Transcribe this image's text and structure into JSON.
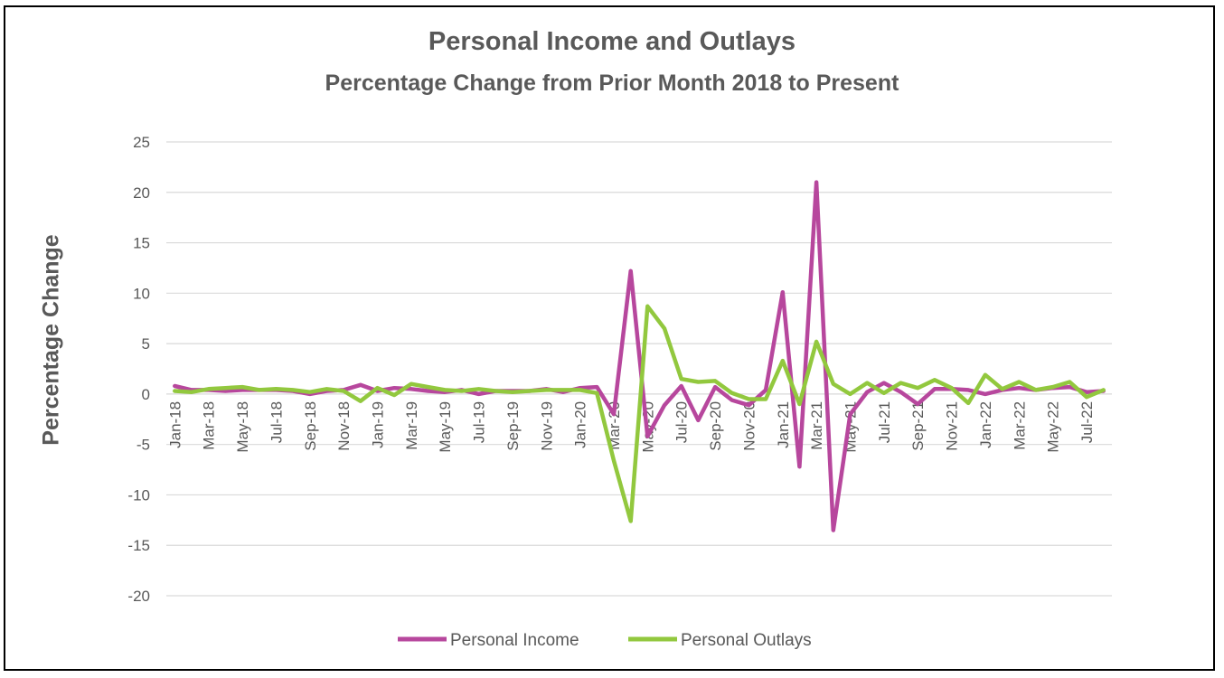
{
  "chart_data": {
    "type": "line",
    "title": "Personal Income and Outlays",
    "subtitle": "Percentage Change from Prior Month 2018 to Present",
    "ylabel": "Percentage Change",
    "xlabel": "",
    "ylim": [
      -20,
      25
    ],
    "yticks": [
      25,
      20,
      15,
      10,
      5,
      0,
      -5,
      -10,
      -15,
      -20
    ],
    "grid": true,
    "legend_position": "bottom",
    "categories": [
      "Jan-18",
      "Feb-18",
      "Mar-18",
      "Apr-18",
      "May-18",
      "Jun-18",
      "Jul-18",
      "Aug-18",
      "Sep-18",
      "Oct-18",
      "Nov-18",
      "Dec-18",
      "Jan-19",
      "Feb-19",
      "Mar-19",
      "Apr-19",
      "May-19",
      "Jun-19",
      "Jul-19",
      "Aug-19",
      "Sep-19",
      "Oct-19",
      "Nov-19",
      "Dec-19",
      "Jan-20",
      "Feb-20",
      "Mar-20",
      "Apr-20",
      "May-20",
      "Jun-20",
      "Jul-20",
      "Aug-20",
      "Sep-20",
      "Oct-20",
      "Nov-20",
      "Dec-20",
      "Jan-21",
      "Feb-21",
      "Mar-21",
      "Apr-21",
      "May-21",
      "Jun-21",
      "Jul-21",
      "Aug-21",
      "Sep-21",
      "Oct-21",
      "Nov-21",
      "Dec-21",
      "Jan-22",
      "Feb-22",
      "Mar-22",
      "Apr-22",
      "May-22",
      "Jun-22",
      "Jul-22",
      "Aug-22"
    ],
    "tick_labels": [
      "Jan-18",
      "Mar-18",
      "May-18",
      "Jul-18",
      "Sep-18",
      "Nov-18",
      "Jan-19",
      "Mar-19",
      "May-19",
      "Jul-19",
      "Sep-19",
      "Nov-19",
      "Jan-20",
      "Mar-20",
      "May-20",
      "Jul-20",
      "Sep-20",
      "Nov-20",
      "Jan-21",
      "Mar-21",
      "May-21",
      "Jul-21",
      "Sep-21",
      "Nov-21",
      "Jan-22",
      "Mar-22",
      "May-22",
      "Jul-22"
    ],
    "series": [
      {
        "name": "Personal Income",
        "color": "#B7479D",
        "values": [
          0.8,
          0.4,
          0.4,
          0.3,
          0.4,
          0.4,
          0.4,
          0.3,
          0.0,
          0.3,
          0.4,
          0.9,
          0.3,
          0.6,
          0.5,
          0.3,
          0.2,
          0.4,
          0.0,
          0.3,
          0.3,
          0.3,
          0.5,
          0.2,
          0.6,
          0.7,
          -2.0,
          12.2,
          -4.2,
          -1.1,
          0.8,
          -2.6,
          0.7,
          -0.6,
          -1.1,
          0.4,
          10.1,
          -7.2,
          21.0,
          -13.5,
          -2.0,
          0.2,
          1.1,
          0.2,
          -1.0,
          0.5,
          0.5,
          0.4,
          0.0,
          0.4,
          0.6,
          0.4,
          0.6,
          0.7,
          0.2,
          0.3
        ]
      },
      {
        "name": "Personal Outlays",
        "color": "#92C83E",
        "values": [
          0.3,
          0.2,
          0.5,
          0.6,
          0.7,
          0.4,
          0.5,
          0.4,
          0.2,
          0.5,
          0.3,
          -0.7,
          0.6,
          -0.1,
          1.0,
          0.7,
          0.4,
          0.3,
          0.5,
          0.3,
          0.2,
          0.3,
          0.4,
          0.4,
          0.4,
          0.1,
          -6.6,
          -12.6,
          8.7,
          6.5,
          1.5,
          1.2,
          1.3,
          0.1,
          -0.5,
          -0.5,
          3.3,
          -1.0,
          5.2,
          1.0,
          0.0,
          1.1,
          0.1,
          1.1,
          0.6,
          1.4,
          0.6,
          -0.9,
          1.9,
          0.5,
          1.2,
          0.4,
          0.7,
          1.2,
          -0.3,
          0.4
        ]
      }
    ]
  }
}
